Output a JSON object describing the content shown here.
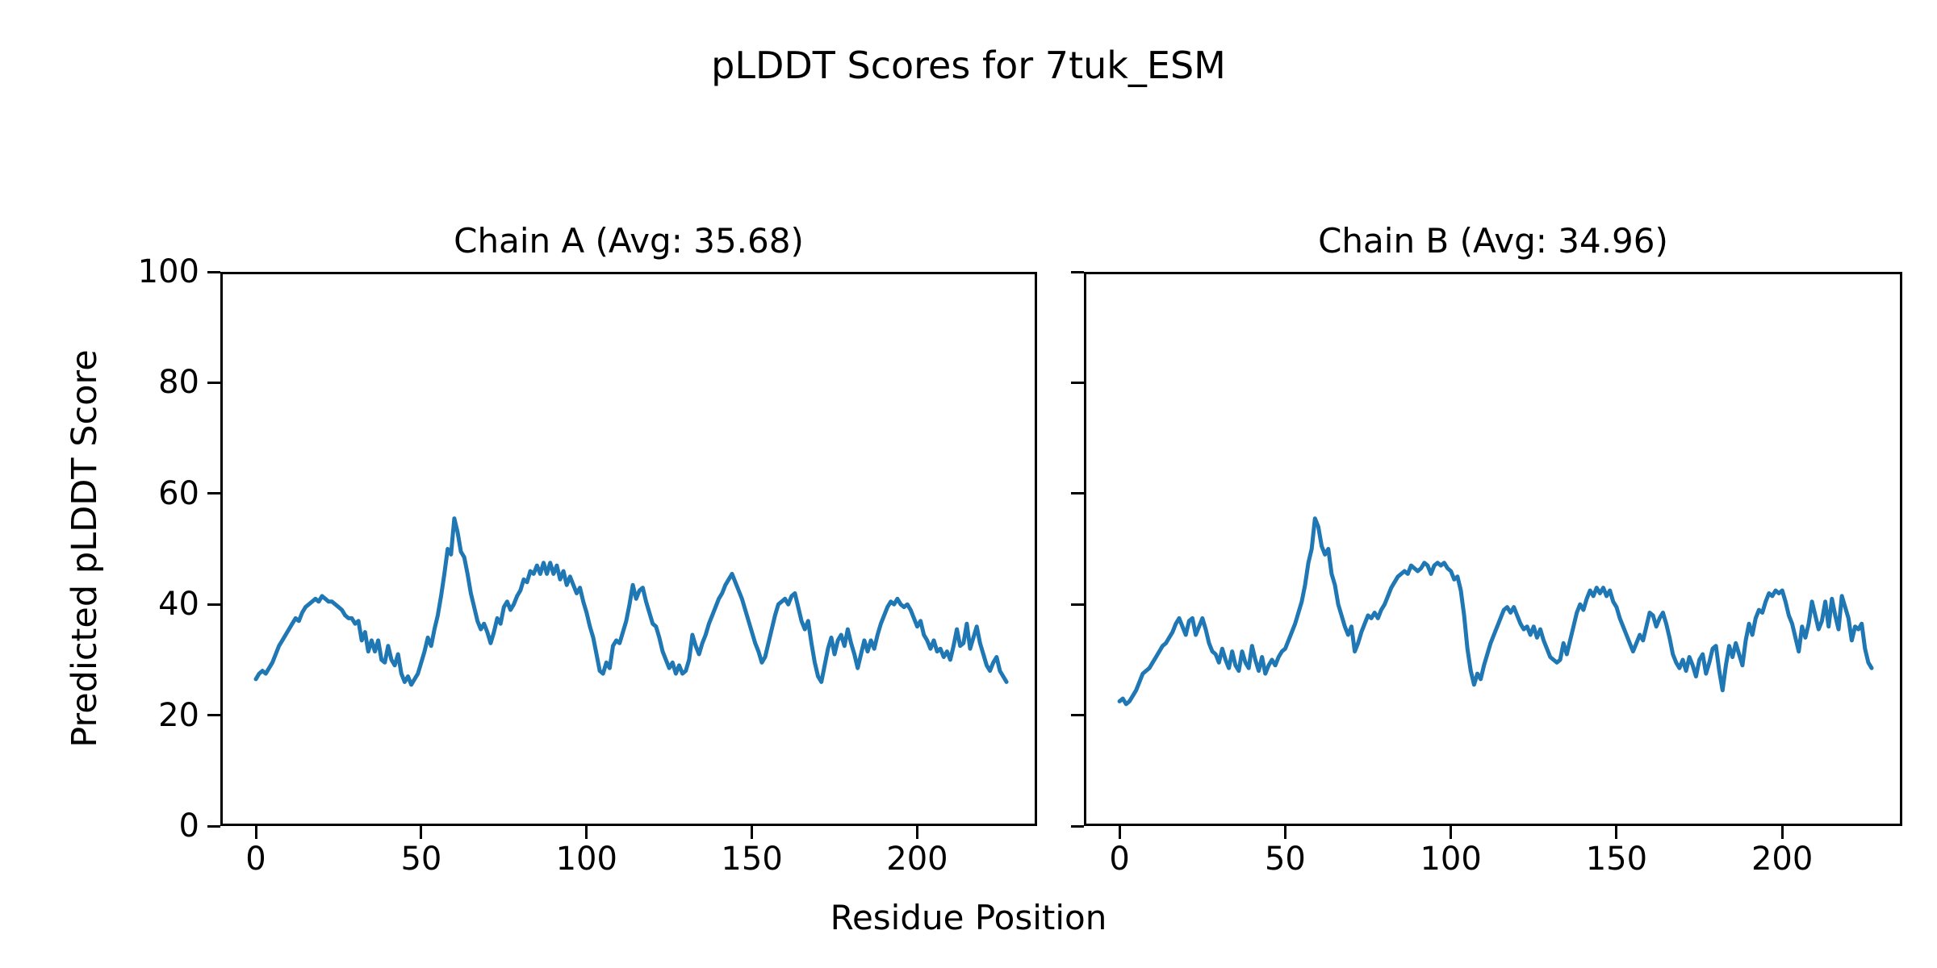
{
  "figure": {
    "suptitle": "pLDDT Scores for 7tuk_ESM",
    "xlabel": "Residue Position",
    "ylabel": "Predicted pLDDT Score",
    "background_color": "#ffffff",
    "text_color": "#000000",
    "spine_color": "#000000"
  },
  "chart_data": [
    {
      "type": "line",
      "title": "Chain A (Avg: 35.68)",
      "average": 35.68,
      "xlim": [
        -10.75,
        236.25
      ],
      "ylim": [
        0,
        100
      ],
      "x_ticks": [
        0,
        50,
        100,
        150,
        200
      ],
      "y_ticks": [
        0,
        20,
        40,
        60,
        80,
        100
      ],
      "show_y_tick_labels": true,
      "grid": false,
      "series": [
        {
          "name": "chain-a-plddt-line",
          "color": "#1f77b4",
          "x_start": 0,
          "values": [
            26.5,
            27.5,
            28,
            27.5,
            28.5,
            29.5,
            31,
            32.5,
            33.5,
            34.5,
            35.5,
            36.5,
            37.5,
            37,
            38.5,
            39.5,
            40,
            40.5,
            41,
            40.5,
            41.5,
            41,
            40.5,
            40.5,
            40,
            39.5,
            39,
            38,
            37.5,
            37.5,
            36.5,
            37,
            33.5,
            35,
            31.5,
            33.5,
            31.5,
            33.5,
            30,
            29.5,
            32.5,
            30,
            29,
            31,
            27.5,
            26,
            27,
            25.5,
            26.5,
            27.5,
            29.5,
            31.5,
            34,
            32.5,
            35.5,
            38,
            41.5,
            45.5,
            50,
            49,
            55.5,
            53,
            49.5,
            48.5,
            45.5,
            42,
            39.5,
            37,
            35.5,
            36.5,
            35,
            33,
            35,
            37.5,
            36.5,
            39.5,
            40.5,
            39,
            40,
            41.5,
            42.5,
            44.5,
            44,
            46,
            45.5,
            47,
            45.5,
            47.5,
            45.5,
            47.5,
            45.5,
            47,
            44.5,
            46,
            43.5,
            45,
            43.5,
            42,
            43,
            40.5,
            38.5,
            36,
            34,
            31,
            28,
            27.5,
            29.5,
            28.5,
            32.5,
            33.5,
            33,
            35,
            37,
            40,
            43.5,
            41,
            42.5,
            43,
            40.5,
            38.5,
            36.5,
            36,
            34,
            31.5,
            30,
            28.5,
            29.5,
            27.5,
            29,
            27.5,
            28,
            30,
            34.5,
            32.5,
            31,
            33,
            34.5,
            36.5,
            38,
            39.5,
            41,
            42,
            43.5,
            44.5,
            45.5,
            44,
            42.5,
            41,
            39,
            37,
            35,
            33,
            31.5,
            29.5,
            30.5,
            33,
            35.5,
            38,
            40,
            40.5,
            41,
            40,
            41.5,
            42,
            39.5,
            37,
            35.5,
            37,
            33,
            29.5,
            27,
            26,
            29,
            32,
            34,
            31,
            33.5,
            34.5,
            32.5,
            35.5,
            33,
            31,
            28.5,
            31,
            33.5,
            31.5,
            33.5,
            32,
            34.5,
            36.5,
            38,
            39.5,
            40.5,
            40,
            41,
            40,
            39.5,
            40,
            39,
            37.5,
            36,
            37,
            34.5,
            33.5,
            32,
            33.5,
            31.5,
            32,
            30.5,
            31.5,
            30,
            32.5,
            35.5,
            32.5,
            33,
            36.5,
            32,
            34,
            36,
            33,
            31,
            29,
            28,
            29.5,
            30.5,
            28,
            27,
            26
          ]
        }
      ]
    },
    {
      "type": "line",
      "title": "Chain B (Avg: 34.96)",
      "average": 34.96,
      "xlim": [
        -10.75,
        236.25
      ],
      "ylim": [
        0,
        100
      ],
      "x_ticks": [
        0,
        50,
        100,
        150,
        200
      ],
      "y_ticks": [
        0,
        20,
        40,
        60,
        80,
        100
      ],
      "show_y_tick_labels": false,
      "grid": false,
      "series": [
        {
          "name": "chain-b-plddt-line",
          "color": "#1f77b4",
          "x_start": 0,
          "values": [
            22.5,
            23,
            22,
            22.5,
            23.5,
            24.5,
            26,
            27.5,
            28,
            28.5,
            29.5,
            30.5,
            31.5,
            32.5,
            33,
            34,
            35,
            36.5,
            37.5,
            36,
            34.5,
            37,
            37.5,
            34.5,
            36,
            37.5,
            35.5,
            33,
            31.5,
            31,
            29.5,
            32,
            30,
            28.5,
            31.5,
            29,
            28,
            31.5,
            29.5,
            28.5,
            32.5,
            30,
            28,
            30.5,
            27.5,
            29,
            30,
            29,
            30.5,
            31.5,
            32,
            33.5,
            35,
            36.5,
            38.5,
            40.5,
            43.5,
            47.5,
            50,
            55.5,
            54,
            50.5,
            49,
            50,
            45.5,
            43.5,
            40,
            38,
            36,
            34.5,
            36,
            31.5,
            33,
            35,
            36.5,
            38,
            37.5,
            38.5,
            37.5,
            39,
            40,
            41.5,
            43,
            44,
            45,
            45.5,
            46,
            45.5,
            47,
            46.5,
            46,
            46.5,
            47.5,
            47,
            45.5,
            47,
            47.5,
            47,
            47.5,
            46.5,
            46,
            44.5,
            45,
            42.5,
            38,
            32,
            28,
            25.5,
            27.5,
            26.5,
            29,
            31,
            33,
            34.5,
            36,
            37.5,
            39,
            39.5,
            38.5,
            39.5,
            38,
            36.5,
            35.5,
            36,
            34.5,
            36,
            34,
            35.5,
            33.5,
            32,
            30.5,
            30,
            29.5,
            30,
            33,
            31,
            33.5,
            36,
            38.5,
            40,
            39,
            41,
            42.5,
            41.5,
            43,
            42,
            43,
            41.5,
            42.5,
            40.5,
            39.5,
            37.5,
            36,
            34.5,
            33,
            31.5,
            33,
            34.5,
            33.5,
            36,
            38.5,
            38,
            36,
            37.5,
            38.5,
            36.5,
            34,
            31,
            29.5,
            28.5,
            30,
            28,
            30.5,
            29,
            27,
            30,
            31,
            27.5,
            29.5,
            32,
            32.5,
            28,
            24.5,
            29,
            32.5,
            30.5,
            33,
            31,
            29,
            33.5,
            36.5,
            34.5,
            37.5,
            39,
            38.5,
            40.5,
            42,
            41.5,
            42.5,
            42,
            42.5,
            40.5,
            38,
            36.5,
            34,
            31.5,
            36,
            34,
            36.5,
            40.5,
            38,
            35.5,
            37,
            40.5,
            36,
            41,
            38,
            35.5,
            41.5,
            39.5,
            37.5,
            33.5,
            36,
            35.5,
            36.5,
            32,
            29.5,
            28.5
          ]
        }
      ]
    }
  ]
}
